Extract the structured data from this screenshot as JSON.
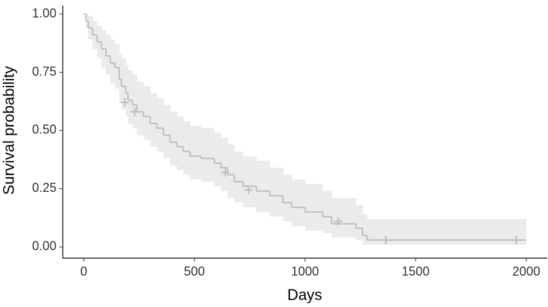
{
  "chart_data": {
    "type": "survival",
    "xlabel": "Days",
    "ylabel": "Survival probability",
    "xlim": [
      -95,
      2095
    ],
    "ylim": [
      -0.048,
      1.036
    ],
    "xticks": [
      0,
      500,
      1000,
      1500,
      2000
    ],
    "yticks": [
      {
        "value": 0,
        "label": "0.00"
      },
      {
        "value": 0.25,
        "label": "0.25"
      },
      {
        "value": 0.5,
        "label": "0.50"
      },
      {
        "value": 0.75,
        "label": "0.75"
      },
      {
        "value": 1,
        "label": "1.00"
      }
    ],
    "series": [
      {
        "color": "#bdbdbd",
        "band_color": "#ebebeb",
        "x": [
          0,
          10,
          20,
          40,
          60,
          80,
          100,
          120,
          140,
          160,
          170,
          190,
          200,
          220,
          240,
          270,
          300,
          330,
          360,
          390,
          420,
          450,
          480,
          530,
          590,
          620,
          650,
          680,
          720,
          780,
          840,
          900,
          940,
          1000,
          1080,
          1120,
          1230,
          1260,
          1280,
          1980
        ],
        "values": [
          1.0,
          0.97,
          0.94,
          0.91,
          0.88,
          0.85,
          0.82,
          0.79,
          0.77,
          0.72,
          0.69,
          0.66,
          0.63,
          0.61,
          0.58,
          0.56,
          0.53,
          0.51,
          0.48,
          0.45,
          0.43,
          0.41,
          0.39,
          0.38,
          0.36,
          0.34,
          0.31,
          0.28,
          0.26,
          0.24,
          0.22,
          0.19,
          0.17,
          0.15,
          0.13,
          0.1,
          0.08,
          0.05,
          0.03,
          0.03
        ],
        "upper": [
          1.0,
          1.0,
          0.99,
          0.97,
          0.95,
          0.93,
          0.91,
          0.89,
          0.87,
          0.83,
          0.81,
          0.78,
          0.76,
          0.74,
          0.71,
          0.69,
          0.66,
          0.64,
          0.61,
          0.58,
          0.56,
          0.54,
          0.52,
          0.51,
          0.49,
          0.47,
          0.44,
          0.41,
          0.39,
          0.37,
          0.34,
          0.31,
          0.29,
          0.27,
          0.24,
          0.21,
          0.18,
          0.14,
          0.12,
          0.12
        ],
        "lower": [
          1.0,
          0.94,
          0.89,
          0.85,
          0.81,
          0.77,
          0.74,
          0.7,
          0.68,
          0.62,
          0.59,
          0.56,
          0.53,
          0.51,
          0.48,
          0.46,
          0.43,
          0.41,
          0.38,
          0.35,
          0.33,
          0.31,
          0.29,
          0.28,
          0.26,
          0.24,
          0.21,
          0.19,
          0.17,
          0.15,
          0.13,
          0.11,
          0.09,
          0.07,
          0.06,
          0.04,
          0.03,
          0.01,
          0.01,
          0.01
        ],
        "censored_x": [
          185,
          230,
          640,
          745,
          1150,
          1365,
          1955
        ],
        "censored_y": [
          0.62,
          0.58,
          0.32,
          0.245,
          0.11,
          0.03,
          0.03
        ]
      }
    ]
  }
}
